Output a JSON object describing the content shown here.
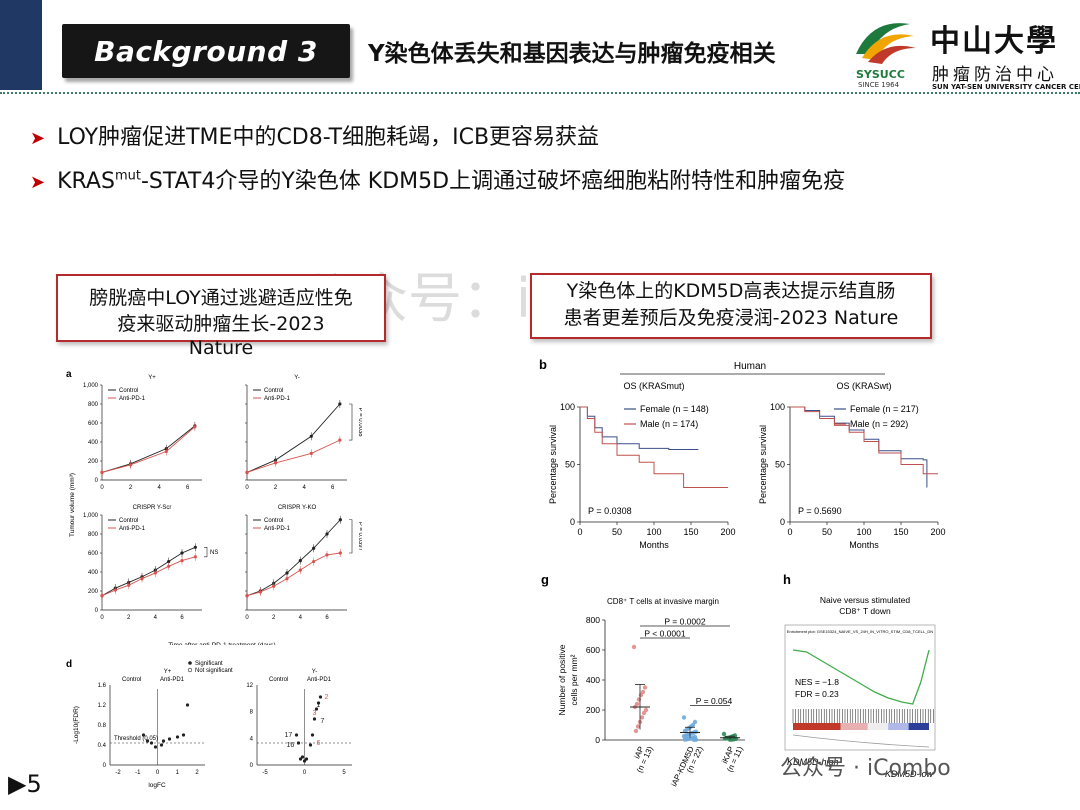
{
  "header": {
    "plaque": "Background 3",
    "title": "Y染色体丢失和基因表达与肿瘤免疫相关"
  },
  "logo": {
    "abbr": "SYSUCC",
    "since": "SINCE 1964",
    "name_cn": "中山大學",
    "sub_cn": "肿瘤防治中心",
    "name_en": "SUN YAT-SEN UNIVERSITY CANCER CENTER"
  },
  "bullets": [
    {
      "pre": "LOY肿瘤促进TME中的CD8-T细胞耗竭，ICB更容易获益",
      "sup": "",
      "post": ""
    },
    {
      "pre": "KRAS",
      "sup": "mut",
      "post": "-STAT4介导的Y染色体 KDM5D上调通过破坏癌细胞粘附特性和肿瘤免疫"
    }
  ],
  "left_box": {
    "line1": "膀胱癌中LOY通过逃避适应性免",
    "line2": "疫来驱动肿瘤生长-2023",
    "line3": "Nature"
  },
  "right_box": {
    "line1": "Y染色体上的KDM5D高表达提示结直肠",
    "line2": "患者更差预后及免疫浸润-2023 Nature"
  },
  "watermark": {
    "top": "公众号：iCombo",
    "bottom": "公众号 · iCombo"
  },
  "page_number": "5",
  "colors": {
    "navy": "#1f3864",
    "red": "#b52a2a",
    "arrow": "#c00000",
    "control": "#222222",
    "treat": "#d9534f",
    "female": "#3b4f8a",
    "male": "#c0504d"
  },
  "chart_data": [
    {
      "type": "line",
      "panel": "a",
      "subpanels": [
        {
          "title": "Y+",
          "legend": [
            "Control",
            "Anti-PD-1"
          ],
          "x": [
            0,
            2,
            4.5,
            6.5
          ],
          "series": [
            {
              "name": "Control",
              "values": [
                80,
                170,
                330,
                570
              ]
            },
            {
              "name": "Anti-PD-1",
              "values": [
                80,
                160,
                300,
                560
              ]
            }
          ],
          "pvalue": ""
        },
        {
          "title": "Y-",
          "legend": [
            "Control",
            "Anti-PD-1"
          ],
          "x": [
            0,
            2,
            4.5,
            6.5
          ],
          "series": [
            {
              "name": "Control",
              "values": [
                80,
                210,
                460,
                800
              ]
            },
            {
              "name": "Anti-PD-1",
              "values": [
                80,
                180,
                280,
                420
              ]
            }
          ],
          "pvalue": "P = 0.0038"
        },
        {
          "title": "CRISPR Y-Scr",
          "legend": [
            "Control",
            "Anti-PD-1"
          ],
          "x": [
            0,
            1,
            2,
            3,
            4,
            5,
            6,
            7
          ],
          "series": [
            {
              "name": "Control",
              "values": [
                150,
                230,
                290,
                350,
                420,
                510,
                600,
                660
              ]
            },
            {
              "name": "Anti-PD-1",
              "values": [
                150,
                210,
                260,
                330,
                390,
                460,
                520,
                560
              ]
            }
          ],
          "pvalue": "NS"
        },
        {
          "title": "CRISPR Y-KO",
          "legend": [
            "Control",
            "Anti-PD-1"
          ],
          "x": [
            0,
            1,
            2,
            3,
            4,
            5,
            6,
            7
          ],
          "series": [
            {
              "name": "Control",
              "values": [
                150,
                200,
                280,
                390,
                520,
                650,
                800,
                950
              ]
            },
            {
              "name": "Anti-PD-1",
              "values": [
                150,
                190,
                250,
                330,
                420,
                510,
                580,
                600
              ]
            }
          ],
          "pvalue": "P = 0.0397"
        }
      ],
      "ylabel": "Tumour volume (mm³)",
      "xlabel": "Time after anti-PD-1 treatment (days)",
      "yticks": [
        "0",
        "200",
        "400",
        "600",
        "800",
        "1,000"
      ],
      "ylim": [
        0,
        1000
      ]
    },
    {
      "type": "scatter",
      "panel": "d",
      "subpanels": [
        {
          "title": "Y+",
          "left": "Control",
          "right": "Anti-PD1",
          "threshold": "Threshold (0.05)",
          "xticks": [
            "-2",
            "-1",
            "0",
            "1",
            "2"
          ],
          "yticks": [
            "0",
            "0.4",
            "0.8",
            "1.2",
            "1.6"
          ],
          "labels": [
            "7"
          ]
        },
        {
          "title": "Y-",
          "left": "Control",
          "right": "Anti-PD1",
          "xticks": [
            "-5",
            "0",
            "5"
          ],
          "yticks": [
            "0",
            "4",
            "8",
            "12"
          ],
          "labels": [
            "1",
            "2",
            "3",
            "7",
            "17",
            "16",
            "6"
          ]
        }
      ],
      "legend": [
        "Significant",
        "Not significant"
      ],
      "ylabel": "-Log10(FDR)",
      "xlabel": "logFC"
    },
    {
      "type": "line",
      "panel": "b",
      "group": "Human",
      "subpanels": [
        {
          "title": "OS (KRASmut)",
          "legend": [
            "Female (n = 148)",
            "Male (n = 174)"
          ],
          "pvalue": "P = 0.0308",
          "series": [
            {
              "name": "Female",
              "x": [
                0,
                10,
                20,
                30,
                50,
                80,
                120,
                160
              ],
              "values": [
                100,
                92,
                82,
                74,
                68,
                64,
                63,
                63
              ]
            },
            {
              "name": "Male",
              "x": [
                0,
                10,
                20,
                30,
                50,
                80,
                100,
                140,
                200
              ],
              "values": [
                100,
                90,
                78,
                68,
                58,
                52,
                42,
                30,
                30
              ]
            }
          ]
        },
        {
          "title": "OS (KRASwt)",
          "legend": [
            "Female (n = 217)",
            "Male (n = 292)"
          ],
          "pvalue": "P = 0.5690",
          "series": [
            {
              "name": "Female",
              "x": [
                0,
                20,
                40,
                60,
                80,
                100,
                120,
                150,
                180,
                185
              ],
              "values": [
                100,
                97,
                92,
                86,
                80,
                72,
                62,
                55,
                54,
                30
              ]
            },
            {
              "name": "Male",
              "x": [
                0,
                20,
                40,
                60,
                80,
                100,
                120,
                150,
                180,
                200
              ],
              "values": [
                100,
                96,
                90,
                84,
                78,
                70,
                60,
                50,
                42,
                42
              ]
            }
          ]
        }
      ],
      "ylabel": "Percentage survival",
      "xlabel": "Months",
      "xticks": [
        "0",
        "50",
        "100",
        "150",
        "200"
      ],
      "yticks": [
        "0",
        "50",
        "100"
      ],
      "xlim": [
        0,
        200
      ],
      "ylim": [
        0,
        100
      ]
    },
    {
      "type": "scatter",
      "panel": "g",
      "title": "CD8⁺ T cells at invasive margin",
      "ylabel": "Number of positive cells per mm²",
      "yticks": [
        "0",
        "200",
        "400",
        "600",
        "800"
      ],
      "ylim": [
        0,
        800
      ],
      "categories": [
        "iAP\n(n = 13)",
        "iAP-KDM5D\n(n = 22)",
        "iKAP\n(n = 11)"
      ],
      "means": [
        220,
        50,
        15
      ],
      "sd": [
        150,
        35,
        10
      ],
      "points": [
        [
          620,
          350,
          320,
          300,
          270,
          240,
          220,
          200,
          180,
          150,
          120,
          90,
          60
        ],
        [
          150,
          120,
          100,
          90,
          80,
          70,
          60,
          55,
          50,
          45,
          40,
          35,
          30,
          25,
          20,
          15,
          10,
          8,
          5,
          3,
          2,
          1
        ],
        [
          40,
          30,
          25,
          20,
          15,
          12,
          10,
          8,
          5,
          3,
          2
        ]
      ],
      "comparisons": [
        "P = 0.0002",
        "P < 0.0001",
        "P = 0.054"
      ]
    },
    {
      "type": "line",
      "panel": "h",
      "title": "Naive versus stimulated CD8⁺ T down",
      "plot_title": "Enrichment plot: GSE15324_NAIVE_VS_24H_IN_VITRO_STIM_CD8_TCELL_DN",
      "stats": [
        "NES = −1.8",
        "FDR = 0.23"
      ],
      "x_labels": [
        "KDM5D-high",
        "KDM5D-low"
      ],
      "series": [
        {
          "name": "Enrichment score",
          "x": [
            0,
            10,
            20,
            30,
            40,
            50,
            60,
            70,
            80,
            88,
            94,
            100
          ],
          "values": [
            0.02,
            0.0,
            -0.08,
            -0.16,
            -0.24,
            -0.32,
            -0.4,
            -0.46,
            -0.5,
            -0.52,
            -0.3,
            0.02
          ]
        }
      ]
    }
  ]
}
